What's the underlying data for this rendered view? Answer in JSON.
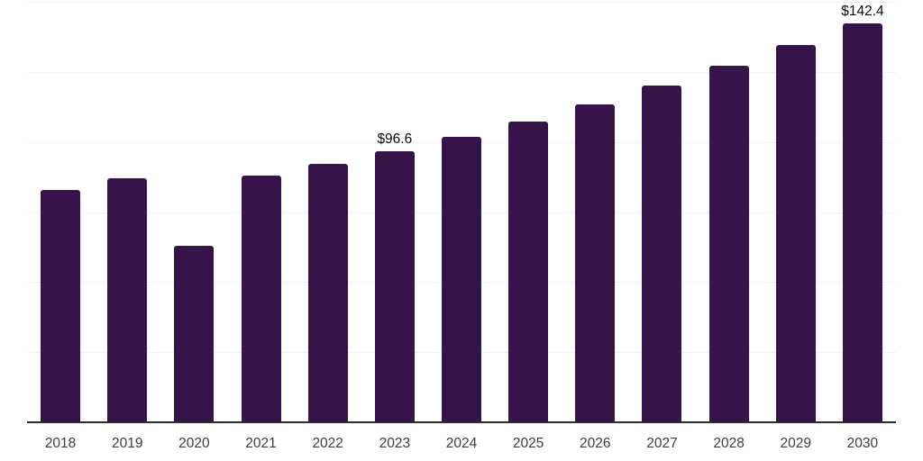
{
  "chart_data": {
    "type": "bar",
    "title": "",
    "xlabel": "",
    "ylabel": "",
    "categories": [
      "2018",
      "2019",
      "2020",
      "2021",
      "2022",
      "2023",
      "2024",
      "2025",
      "2026",
      "2027",
      "2028",
      "2029",
      "2030"
    ],
    "values": [
      82.9,
      87.1,
      63.0,
      88.0,
      92.2,
      96.6,
      101.8,
      107.4,
      113.4,
      120.1,
      127.2,
      134.7,
      142.4
    ],
    "data_labels": [
      {
        "category": "2023",
        "label": "$96.6"
      },
      {
        "category": "2030",
        "label": "$142.4"
      }
    ],
    "unit_prefix": "$",
    "ylim": [
      0,
      150
    ],
    "gridline_step": 25,
    "grid": "horizontal",
    "legend": "none",
    "colors": {
      "bar": "#36134b",
      "gridline": "#f0f0f0",
      "axis_line": "#2d2d2d",
      "tick_label": "#3d3d3d",
      "data_label": "#0a0a0a",
      "background": "#ffffff"
    }
  }
}
